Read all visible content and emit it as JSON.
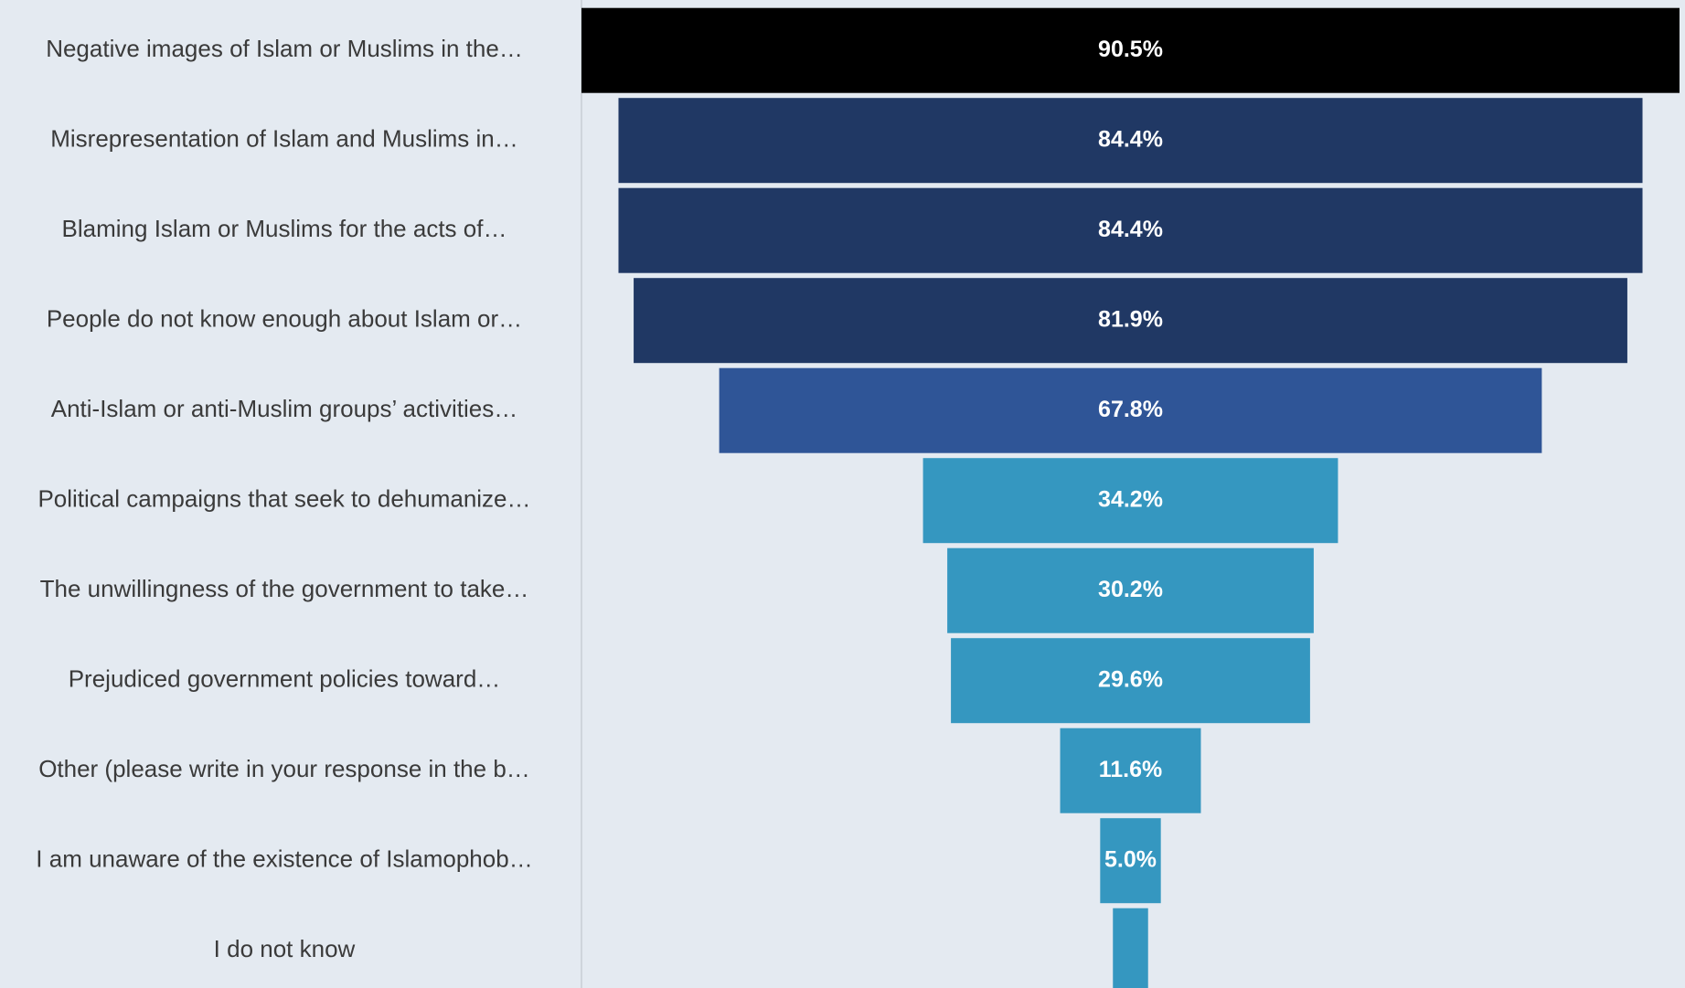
{
  "chart_data": {
    "type": "funnel",
    "categories": [
      "Negative images of Islam or Muslims in the…",
      "Misrepresentation of Islam and Muslims in…",
      "Blaming Islam or Muslims for the acts of…",
      "People do not know enough about Islam or…",
      "Anti-Islam or anti-Muslim groups’ activities…",
      "Political campaigns that seek to dehumanize…",
      "The unwillingness of the government to take…",
      "Prejudiced government policies toward…",
      "Other (please write in your response in the b…",
      "I am unaware of the existence of Islamophob…",
      "I do not know"
    ],
    "values": [
      90.5,
      84.4,
      84.4,
      81.9,
      67.8,
      34.2,
      30.2,
      29.6,
      11.6,
      5.0,
      2.9
    ],
    "value_labels": [
      "90.5%",
      "84.4%",
      "84.4%",
      "81.9%",
      "67.8%",
      "34.2%",
      "30.2%",
      "29.6%",
      "11.6%",
      "5.0%",
      null
    ],
    "colors": [
      "#000000",
      "#203864",
      "#203864",
      "#203864",
      "#2f5597",
      "#3597c0",
      "#3597c0",
      "#3597c0",
      "#3597c0",
      "#3597c0",
      "#3597c0"
    ]
  }
}
